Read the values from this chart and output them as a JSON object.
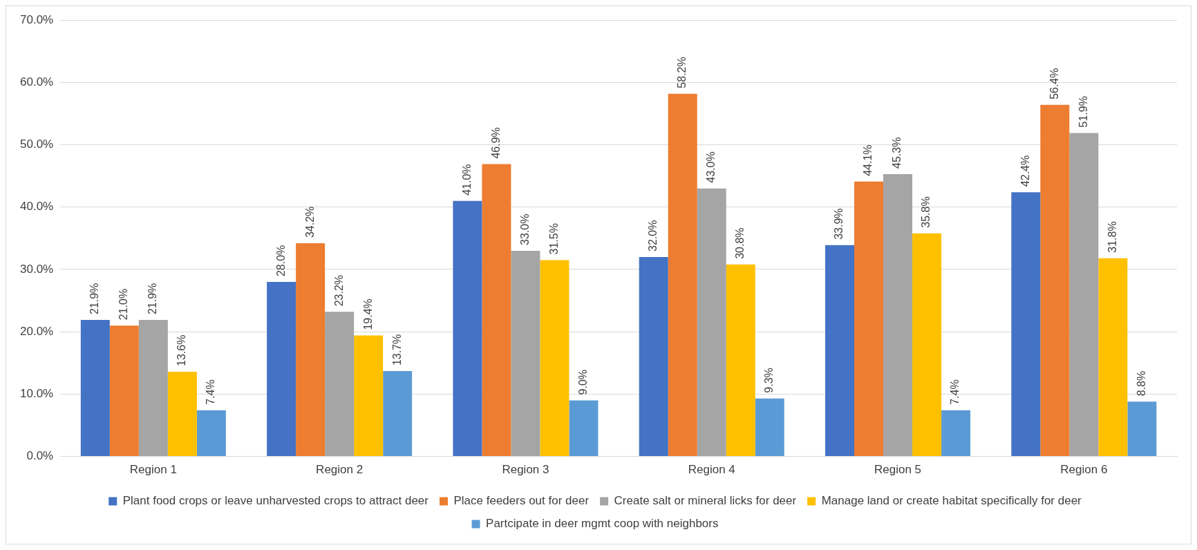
{
  "chart_data": {
    "type": "bar",
    "categories": [
      "Region 1",
      "Region 2",
      "Region 3",
      "Region 4",
      "Region 5",
      "Region 6"
    ],
    "series": [
      {
        "name": "Plant food crops or leave unharvested crops to attract deer",
        "color": "#4472c4",
        "values": [
          21.9,
          28.0,
          41.0,
          32.0,
          33.9,
          42.4
        ],
        "value_labels": [
          "21.9%",
          "28.0%",
          "41.0%",
          "32.0%",
          "33.9%",
          "42.4%"
        ]
      },
      {
        "name": "Place feeders out for deer",
        "color": "#ed7d31",
        "values": [
          21.0,
          34.2,
          46.9,
          58.2,
          44.1,
          56.4
        ],
        "value_labels": [
          "21.0%",
          "34.2%",
          "46.9%",
          "58.2%",
          "44.1%",
          "56.4%"
        ]
      },
      {
        "name": "Create salt or mineral licks for deer",
        "color": "#a5a5a5",
        "values": [
          21.9,
          23.2,
          33.0,
          43.0,
          45.3,
          51.9
        ],
        "value_labels": [
          "21.9%",
          "23.2%",
          "33.0%",
          "43.0%",
          "45.3%",
          "51.9%"
        ]
      },
      {
        "name": "Manage land or create habitat specifically for deer",
        "color": "#ffc000",
        "values": [
          13.6,
          19.4,
          31.5,
          30.8,
          35.8,
          31.8
        ],
        "value_labels": [
          "13.6%",
          "19.4%",
          "31.5%",
          "30.8%",
          "35.8%",
          "31.8%"
        ]
      },
      {
        "name": "Partcipate in deer mgmt coop with neighbors",
        "color": "#5b9bd5",
        "values": [
          7.4,
          13.7,
          9.0,
          9.3,
          7.4,
          8.8
        ],
        "value_labels": [
          "7.4%",
          "13.7%",
          "9.0%",
          "9.3%",
          "7.4%",
          "8.8%"
        ]
      }
    ],
    "ylim": [
      0,
      70
    ],
    "yticks": [
      {
        "value": 0,
        "label": "0.0%"
      },
      {
        "value": 10,
        "label": "10.0%"
      },
      {
        "value": 20,
        "label": "20.0%"
      },
      {
        "value": 30,
        "label": "30.0%"
      },
      {
        "value": 40,
        "label": "40.0%"
      },
      {
        "value": 50,
        "label": "50.0%"
      },
      {
        "value": 60,
        "label": "60.0%"
      },
      {
        "value": 70,
        "label": "70.0%"
      }
    ],
    "grid": "y",
    "legend": "bottom"
  }
}
